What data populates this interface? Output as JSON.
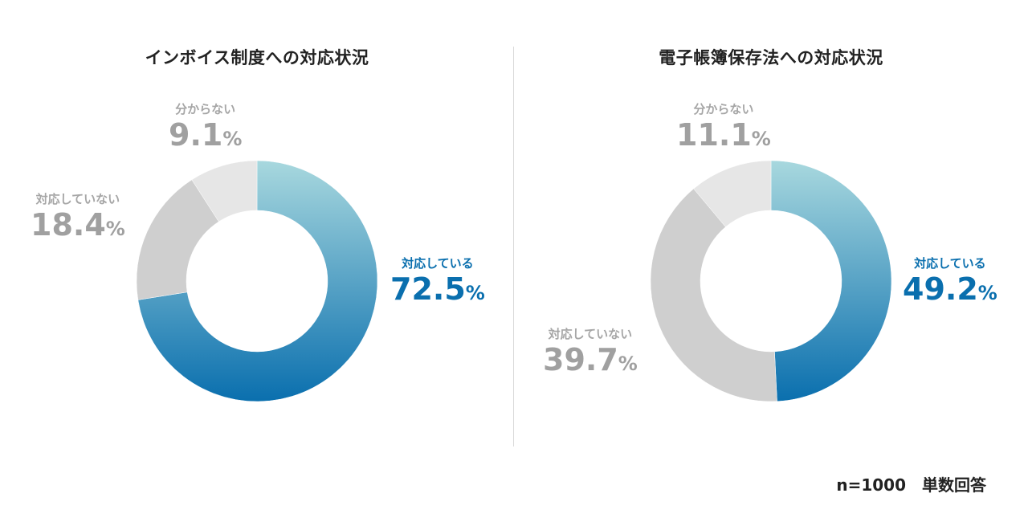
{
  "chart_data": [
    {
      "type": "pie",
      "donut": true,
      "title": "インボイス制度への対応状況",
      "slices": [
        {
          "label": "対応している",
          "value": 72.5,
          "display": "72.5",
          "color_start": "#a8d8de",
          "color_end": "#0a6fae"
        },
        {
          "label": "対応していない",
          "value": 18.4,
          "display": "18.4",
          "color": "#cfcfcf"
        },
        {
          "label": "分からない",
          "value": 9.1,
          "display": "9.1",
          "color": "#e6e6e6"
        }
      ],
      "unit": "%"
    },
    {
      "type": "pie",
      "donut": true,
      "title": "電子帳簿保存法への対応状況",
      "slices": [
        {
          "label": "対応している",
          "value": 49.2,
          "display": "49.2",
          "color_start": "#a8d8de",
          "color_end": "#0a6fae"
        },
        {
          "label": "対応していない",
          "value": 39.7,
          "display": "39.7",
          "color": "#cfcfcf"
        },
        {
          "label": "分からない",
          "value": 11.1,
          "display": "11.1",
          "color": "#e6e6e6"
        }
      ],
      "unit": "%"
    }
  ],
  "footnote": "n=1000　単数回答"
}
